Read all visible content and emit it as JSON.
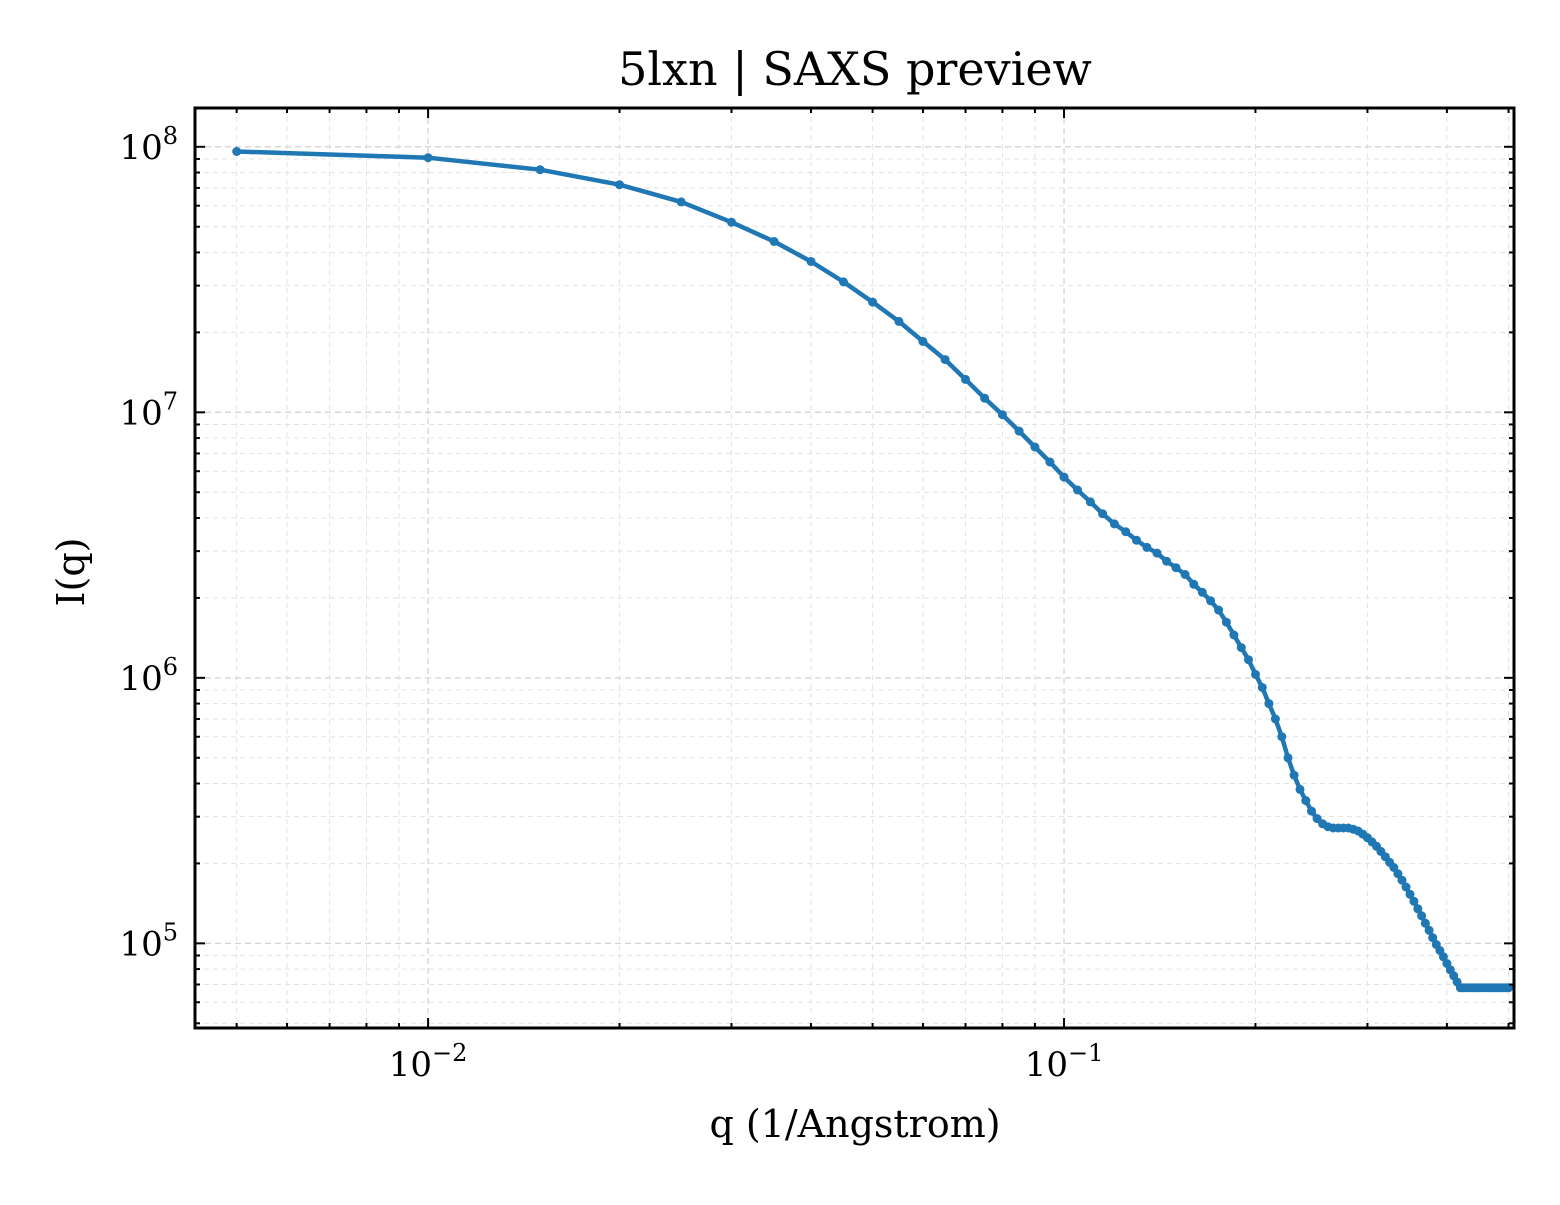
{
  "chart_data": {
    "type": "line",
    "title": "5lxn | SAXS preview",
    "xlabel": "q (1/Angstrom)",
    "ylabel": "I(q)",
    "xscale": "log",
    "yscale": "log",
    "xlim": [
      0.0043,
      0.51
    ],
    "ylim": [
      48000,
      140000000
    ],
    "grid": "major and minor, dashed",
    "legend": "none",
    "x_ticks": [
      {
        "base": "10",
        "exp": "−2",
        "value": 0.01
      },
      {
        "base": "10",
        "exp": "−1",
        "value": 0.1
      }
    ],
    "y_ticks": [
      {
        "base": "10",
        "exp": "5",
        "value": 100000
      },
      {
        "base": "10",
        "exp": "6",
        "value": 1000000
      },
      {
        "base": "10",
        "exp": "7",
        "value": 10000000
      },
      {
        "base": "10",
        "exp": "8",
        "value": 100000000
      }
    ],
    "colors": {
      "series": "#1f77b4"
    },
    "series": [
      {
        "x": [
          0.005,
          0.01,
          0.015,
          0.02,
          0.025,
          0.03,
          0.035,
          0.04,
          0.045,
          0.05,
          0.055,
          0.06,
          0.065,
          0.07,
          0.075,
          0.08,
          0.085,
          0.09,
          0.095,
          0.1,
          0.105,
          0.11,
          0.115,
          0.12,
          0.125,
          0.13,
          0.135,
          0.14,
          0.145,
          0.15,
          0.155,
          0.16,
          0.165,
          0.17,
          0.175,
          0.18,
          0.185,
          0.19,
          0.195,
          0.2,
          0.205,
          0.21,
          0.215,
          0.22,
          0.225,
          0.23,
          0.235,
          0.24,
          0.245,
          0.25,
          0.255,
          0.26,
          0.265,
          0.27,
          0.275,
          0.28,
          0.285,
          0.29,
          0.295,
          0.3,
          0.305,
          0.31,
          0.315,
          0.32,
          0.325,
          0.33,
          0.335,
          0.34,
          0.345,
          0.35,
          0.355,
          0.36,
          0.365,
          0.37,
          0.375,
          0.38,
          0.385,
          0.39,
          0.395,
          0.4,
          0.405,
          0.41,
          0.415,
          0.42,
          0.425,
          0.43,
          0.435,
          0.44,
          0.445,
          0.45,
          0.455,
          0.46,
          0.465,
          0.47,
          0.475,
          0.48,
          0.485,
          0.49,
          0.495,
          0.5
        ],
        "y": [
          96000000,
          91000000,
          82000000,
          72000000,
          62000000,
          52000000,
          44000000,
          37000000,
          31000000,
          26000000,
          22000000,
          18500000,
          15800000,
          13300000,
          11300000,
          9800000,
          8500000,
          7400000,
          6500000,
          5700000,
          5100000,
          4600000,
          4150000,
          3800000,
          3550000,
          3300000,
          3100000,
          2950000,
          2750000,
          2600000,
          2450000,
          2250000,
          2100000,
          1950000,
          1800000,
          1620000,
          1450000,
          1300000,
          1170000,
          1030000,
          920000,
          800000,
          700000,
          600000,
          500000,
          430000,
          380000,
          345000,
          315000,
          295000,
          282000,
          275000,
          272000,
          272000,
          272000,
          272000,
          269000,
          265000,
          258000,
          250000,
          241000,
          232000,
          222000,
          212000,
          202000,
          193000,
          183000,
          173000,
          163000,
          153000,
          144000,
          135000,
          127000,
          119000,
          112000,
          105000,
          99000,
          94000,
          89000,
          84000,
          79500,
          75500,
          71500,
          68000,
          68000,
          68000,
          68000,
          68000,
          68000,
          68000,
          68000,
          68000,
          68000,
          68000,
          68000,
          68000,
          68000,
          68000,
          68000,
          68000
        ]
      }
    ]
  }
}
